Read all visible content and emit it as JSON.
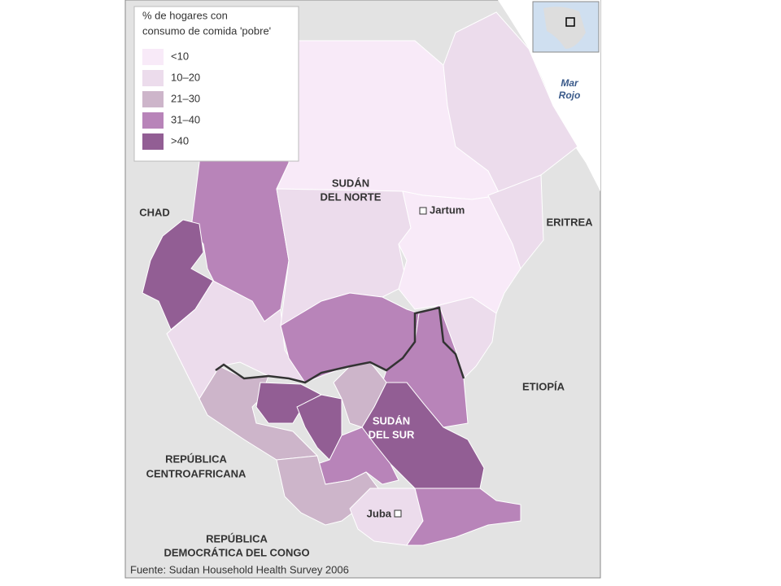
{
  "legend": {
    "title_lines": [
      "% de hogares con",
      "consumo de comida 'pobre'"
    ],
    "items": [
      {
        "label": "<10",
        "color": "#f8eaf8"
      },
      {
        "label": "10–20",
        "color": "#ecdcec"
      },
      {
        "label": "21–30",
        "color": "#cdb5ca"
      },
      {
        "label": "31–40",
        "color": "#b884b9"
      },
      {
        "label": ">40",
        "color": "#925e94"
      }
    ]
  },
  "places": {
    "chad": [
      "CHAD"
    ],
    "eritrea": [
      "ERITREA"
    ],
    "etiopia": [
      "ETIOPÍA"
    ],
    "sudan_norte": [
      "SUDÁN",
      "DEL NORTE"
    ],
    "sudan_sur": [
      "SUDÁN",
      "DEL SUR"
    ],
    "rca": [
      "REPÚBLICA",
      "CENTROAFRICANA"
    ],
    "rdc": [
      "REPÚBLICA",
      "DEMOCRÁTICA DEL CONGO"
    ],
    "jartum": [
      "Jartum"
    ],
    "juba": [
      "Juba"
    ],
    "mar_rojo": [
      "Mar",
      "Rojo"
    ]
  },
  "source": "Fuente: Sudan Household Health Survey 2006"
}
